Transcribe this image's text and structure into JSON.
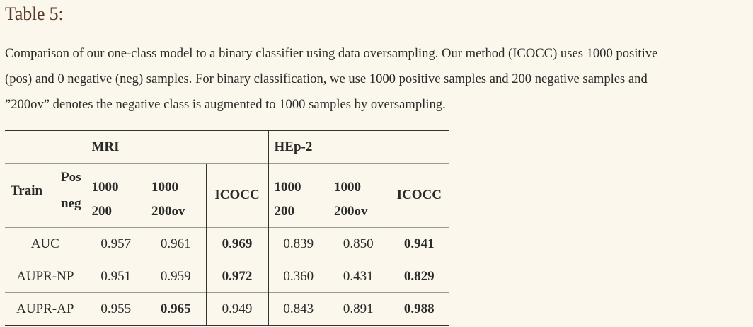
{
  "title": "Table 5:",
  "caption_lines": [
    "Comparison of our one-class model to a binary classifier using data oversampling. Our method (ICOCC) uses 1000 positive",
    "(pos) and 0 negative (neg) samples. For binary classification, we use 1000 positive samples and 200 negative samples and",
    "”200ov” denotes the negative class is augmented to 1000 samples by oversampling."
  ],
  "table": {
    "group_headers": [
      "MRI",
      "HEp-2"
    ],
    "row_label": "Train",
    "pos_label": "Pos",
    "neg_label": "neg",
    "config": {
      "mri_a_pos": "1000",
      "mri_a_neg": "200",
      "mri_b_pos": "1000",
      "mri_b_neg": "200ov",
      "mri_c": "ICOCC",
      "hep_a_pos": "1000",
      "hep_a_neg": "200",
      "hep_b_pos": "1000",
      "hep_b_neg": "200ov",
      "hep_c": "ICOCC"
    },
    "rows": [
      {
        "metric": "AUC",
        "values": [
          "0.957",
          "0.961",
          "0.969",
          "0.839",
          "0.850",
          "0.941"
        ],
        "bold": [
          false,
          false,
          true,
          false,
          false,
          true
        ]
      },
      {
        "metric": "AUPR-NP",
        "values": [
          "0.951",
          "0.959",
          "0.972",
          "0.360",
          "0.431",
          "0.829"
        ],
        "bold": [
          false,
          false,
          true,
          false,
          false,
          true
        ]
      },
      {
        "metric": "AUPR-AP",
        "values": [
          "0.955",
          "0.965",
          "0.949",
          "0.843",
          "0.891",
          "0.988"
        ],
        "bold": [
          false,
          true,
          false,
          false,
          false,
          true
        ]
      }
    ]
  }
}
